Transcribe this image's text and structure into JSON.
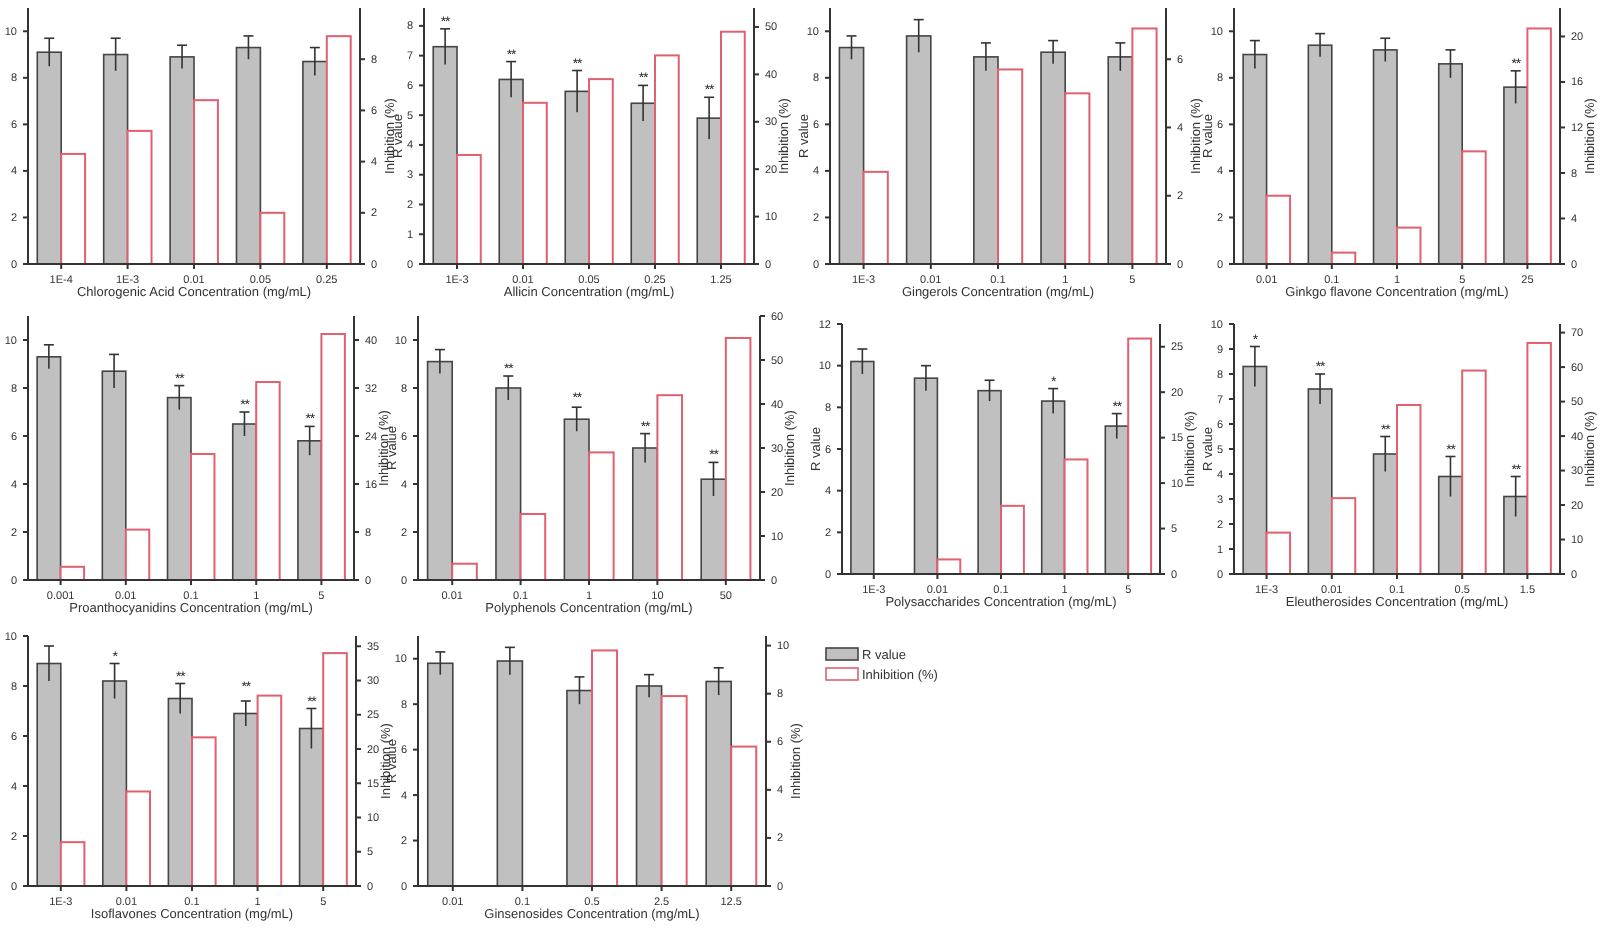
{
  "chart_data": [
    {
      "type": "bar",
      "xlabel": "Chlorogenic Acid Concentration (mg/mL)",
      "y2label": "Inhibition (%)",
      "categories": [
        "1E-4",
        "1E-3",
        "0.01",
        "0.05",
        "0.25"
      ],
      "ylim": [
        0,
        11
      ],
      "yticks": [
        0,
        2,
        4,
        6,
        8,
        10
      ],
      "y2lim": [
        0,
        10
      ],
      "y2ticks": [
        0,
        2,
        4,
        6,
        8
      ],
      "series": [
        {
          "color": "#c0c0c0",
          "values": [
            9.1,
            9.0,
            8.9,
            9.3,
            8.7
          ],
          "errors": [
            0.6,
            0.7,
            0.5,
            0.5,
            0.6
          ]
        },
        {
          "color": "#e06070",
          "axis": "y2",
          "values": [
            4.3,
            5.2,
            6.4,
            2.0,
            8.9
          ]
        }
      ]
    },
    {
      "type": "bar",
      "xlabel": "Allicin Concentration (mg/mL)",
      "ylabel": "R value",
      "y2label": "Inhibition (%)",
      "categories": [
        "1E-3",
        "0.01",
        "0.05",
        "0.25",
        "1.25"
      ],
      "ylim": [
        0,
        8.6
      ],
      "yticks": [
        0,
        1,
        2,
        3,
        4,
        5,
        6,
        7,
        8
      ],
      "y2lim": [
        0,
        54
      ],
      "y2ticks": [
        0,
        10,
        20,
        30,
        40,
        50
      ],
      "series": [
        {
          "color": "#c0c0c0",
          "values": [
            7.3,
            6.2,
            5.8,
            5.4,
            4.9
          ],
          "errors": [
            0.6,
            0.6,
            0.7,
            0.6,
            0.7
          ]
        },
        {
          "color": "#e06070",
          "axis": "y2",
          "values": [
            23,
            34,
            39,
            44,
            49
          ]
        }
      ],
      "annotations": [
        {
          "text": "**",
          "x": "1E-3",
          "y": 7.9
        },
        {
          "text": "**",
          "x": "0.01",
          "y": 6.8
        },
        {
          "text": "**",
          "x": "0.05",
          "y": 6.5
        },
        {
          "text": "**",
          "x": "0.25",
          "y": 6.0
        },
        {
          "text": "**",
          "x": "1.25",
          "y": 5.6
        }
      ]
    },
    {
      "type": "bar",
      "xlabel": "Gingerols Concentration (mg/mL)",
      "ylabel": "R value",
      "y2label": "Inhibition (%)",
      "categories": [
        "1E-3",
        "0.01",
        "0.1",
        "1",
        "5"
      ],
      "ylim": [
        0,
        11
      ],
      "yticks": [
        0,
        2,
        4,
        6,
        8,
        10
      ],
      "y2lim": [
        0,
        7.5
      ],
      "y2ticks": [
        0,
        2,
        4,
        6
      ],
      "series": [
        {
          "color": "#c0c0c0",
          "values": [
            9.3,
            9.8,
            8.9,
            9.1,
            8.9
          ],
          "errors": [
            0.5,
            0.7,
            0.6,
            0.5,
            0.6
          ]
        },
        {
          "color": "#e06070",
          "axis": "y2",
          "values": [
            2.7,
            0,
            5.7,
            5.0,
            6.9
          ]
        }
      ]
    },
    {
      "type": "bar",
      "xlabel": "Ginkgo flavone Concentration (mg/mL)",
      "ylabel": "R value",
      "y2label": "Inhibition (%)",
      "categories": [
        "0.01",
        "0.1",
        "1",
        "5",
        "25"
      ],
      "ylim": [
        0,
        11
      ],
      "yticks": [
        0,
        2,
        4,
        6,
        8,
        10
      ],
      "y2lim": [
        0,
        22.5
      ],
      "y2ticks": [
        0,
        4,
        8,
        12,
        16,
        20
      ],
      "series": [
        {
          "color": "#c0c0c0",
          "values": [
            9.0,
            9.4,
            9.2,
            8.6,
            7.6
          ],
          "errors": [
            0.6,
            0.5,
            0.5,
            0.6,
            0.7
          ]
        },
        {
          "color": "#e06070",
          "axis": "y2",
          "values": [
            6.0,
            1.0,
            3.2,
            9.9,
            20.7
          ]
        }
      ],
      "annotations": [
        {
          "text": "**",
          "x": "25",
          "y": 8.3
        }
      ]
    },
    {
      "type": "bar",
      "xlabel": "Proanthocyanidins Concentration (mg/mL)",
      "y2label": "Inhibition (%)",
      "categories": [
        "0.001",
        "0.01",
        "0.1",
        "1",
        "5"
      ],
      "ylim": [
        0,
        11
      ],
      "yticks": [
        0,
        2,
        4,
        6,
        8,
        10
      ],
      "y2lim": [
        0,
        44
      ],
      "y2ticks": [
        0,
        8,
        16,
        24,
        32,
        40
      ],
      "series": [
        {
          "color": "#c0c0c0",
          "values": [
            9.3,
            8.7,
            7.6,
            6.5,
            5.8
          ],
          "errors": [
            0.5,
            0.7,
            0.5,
            0.5,
            0.6
          ]
        },
        {
          "color": "#e06070",
          "axis": "y2",
          "values": [
            2.2,
            8.4,
            21,
            33,
            41
          ]
        }
      ],
      "annotations": [
        {
          "text": "**",
          "x": "0.1",
          "y": 8.1
        },
        {
          "text": "**",
          "x": "1",
          "y": 7.0
        },
        {
          "text": "**",
          "x": "5",
          "y": 6.4
        }
      ]
    },
    {
      "type": "bar",
      "xlabel": "Polyphenols Concentration (mg/mL)",
      "ylabel": "R value",
      "y2label": "Inhibition (%)",
      "categories": [
        "0.01",
        "0.1",
        "1",
        "10",
        "50"
      ],
      "ylim": [
        0,
        11
      ],
      "yticks": [
        0,
        2,
        4,
        6,
        8,
        10
      ],
      "y2lim": [
        0,
        60
      ],
      "y2ticks": [
        0,
        10,
        20,
        30,
        40,
        50,
        60
      ],
      "series": [
        {
          "color": "#c0c0c0",
          "values": [
            9.1,
            8.0,
            6.7,
            5.5,
            4.2
          ],
          "errors": [
            0.5,
            0.5,
            0.5,
            0.6,
            0.7
          ]
        },
        {
          "color": "#e06070",
          "axis": "y2",
          "values": [
            3.7,
            15,
            29,
            42,
            55
          ]
        }
      ],
      "annotations": [
        {
          "text": "**",
          "x": "0.1",
          "y": 8.5
        },
        {
          "text": "**",
          "x": "1",
          "y": 7.3
        },
        {
          "text": "**",
          "x": "10",
          "y": 6.1
        },
        {
          "text": "**",
          "x": "50",
          "y": 4.9
        }
      ]
    },
    {
      "type": "bar",
      "xlabel": "Polysaccharides Concentration (mg/mL)",
      "ylabel": "R value",
      "y2label": "Inhibition (%)",
      "categories": [
        "1E-3",
        "0.01",
        "0.1",
        "1",
        "5"
      ],
      "ylim": [
        0,
        12
      ],
      "yticks": [
        0,
        2,
        4,
        6,
        8,
        10,
        12
      ],
      "y2lim": [
        0,
        27.5
      ],
      "y2ticks": [
        0,
        5,
        10,
        15,
        20,
        25
      ],
      "series": [
        {
          "color": "#c0c0c0",
          "values": [
            10.2,
            9.4,
            8.8,
            8.3,
            7.1
          ],
          "errors": [
            0.6,
            0.6,
            0.5,
            0.6,
            0.6
          ]
        },
        {
          "color": "#e06070",
          "axis": "y2",
          "values": [
            0,
            1.6,
            7.5,
            12.6,
            25.9
          ]
        }
      ],
      "annotations": [
        {
          "text": "*",
          "x": "1",
          "y": 8.9
        },
        {
          "text": "**",
          "x": "5",
          "y": 7.7
        }
      ]
    },
    {
      "type": "bar",
      "xlabel": "Eleutherosides Concentration (mg/mL)",
      "ylabel": "R value",
      "y2label": "Inhibition (%)",
      "categories": [
        "1E-3",
        "0.01",
        "0.1",
        "0.5",
        "1.5"
      ],
      "ylim": [
        0,
        10
      ],
      "yticks": [
        0,
        1,
        2,
        3,
        4,
        5,
        6,
        7,
        8,
        9,
        10
      ],
      "y2lim": [
        0,
        72.5
      ],
      "y2ticks": [
        0,
        10,
        20,
        30,
        40,
        50,
        60,
        70
      ],
      "series": [
        {
          "color": "#c0c0c0",
          "values": [
            8.3,
            7.4,
            4.8,
            3.9,
            3.1
          ],
          "errors": [
            0.8,
            0.6,
            0.7,
            0.8,
            0.8
          ]
        },
        {
          "color": "#e06070",
          "axis": "y2",
          "values": [
            12,
            22,
            49,
            59,
            67
          ]
        }
      ],
      "annotations": [
        {
          "text": "*",
          "x": "1E-3",
          "y": 9.1
        },
        {
          "text": "**",
          "x": "0.01",
          "y": 8.0
        },
        {
          "text": "**",
          "x": "0.1",
          "y": 5.5
        },
        {
          "text": "**",
          "x": "0.5",
          "y": 4.7
        },
        {
          "text": "**",
          "x": "1.5",
          "y": 3.9
        }
      ]
    },
    {
      "type": "bar",
      "xlabel": "Isoflavones Concentration (mg/mL)",
      "y2label": "Inhibition (%)",
      "categories": [
        "1E-3",
        "0.01",
        "0.1",
        "1",
        "5"
      ],
      "ylim": [
        0,
        10
      ],
      "yticks": [
        0,
        2,
        4,
        6,
        8,
        10
      ],
      "y2lim": [
        0,
        36.5
      ],
      "y2ticks": [
        0,
        5,
        10,
        15,
        20,
        25,
        30,
        35
      ],
      "series": [
        {
          "color": "#c0c0c0",
          "values": [
            8.9,
            8.2,
            7.5,
            6.9,
            6.3
          ],
          "errors": [
            0.7,
            0.7,
            0.6,
            0.5,
            0.8
          ]
        },
        {
          "color": "#e06070",
          "axis": "y2",
          "values": [
            6.4,
            13.8,
            21.7,
            27.8,
            34.0
          ]
        }
      ],
      "annotations": [
        {
          "text": "*",
          "x": "0.01",
          "y": 8.9
        },
        {
          "text": "**",
          "x": "0.1",
          "y": 8.1
        },
        {
          "text": "**",
          "x": "1",
          "y": 7.7
        },
        {
          "text": "**",
          "x": "5",
          "y": 7.1
        }
      ]
    },
    {
      "type": "bar",
      "xlabel": "Ginsenosides Concentration (mg/mL)",
      "ylabel": "R value",
      "y2label": "Inhibition (%)",
      "categories": [
        "0.01",
        "0.1",
        "0.5",
        "2.5",
        "12.5"
      ],
      "ylim": [
        0,
        11
      ],
      "yticks": [
        0,
        2,
        4,
        6,
        8,
        10
      ],
      "y2lim": [
        0,
        10.4
      ],
      "y2ticks": [
        0,
        2,
        4,
        6,
        8,
        10
      ],
      "legend": "right",
      "series": [
        {
          "name": "R value",
          "color": "#c0c0c0",
          "values": [
            9.8,
            9.9,
            8.6,
            8.8,
            9.0
          ],
          "errors": [
            0.5,
            0.6,
            0.6,
            0.5,
            0.6
          ]
        },
        {
          "name": "Inhibition (%)",
          "color": "#e06070",
          "axis": "y2",
          "values": [
            0,
            0,
            9.8,
            7.9,
            5.8
          ]
        }
      ]
    }
  ]
}
